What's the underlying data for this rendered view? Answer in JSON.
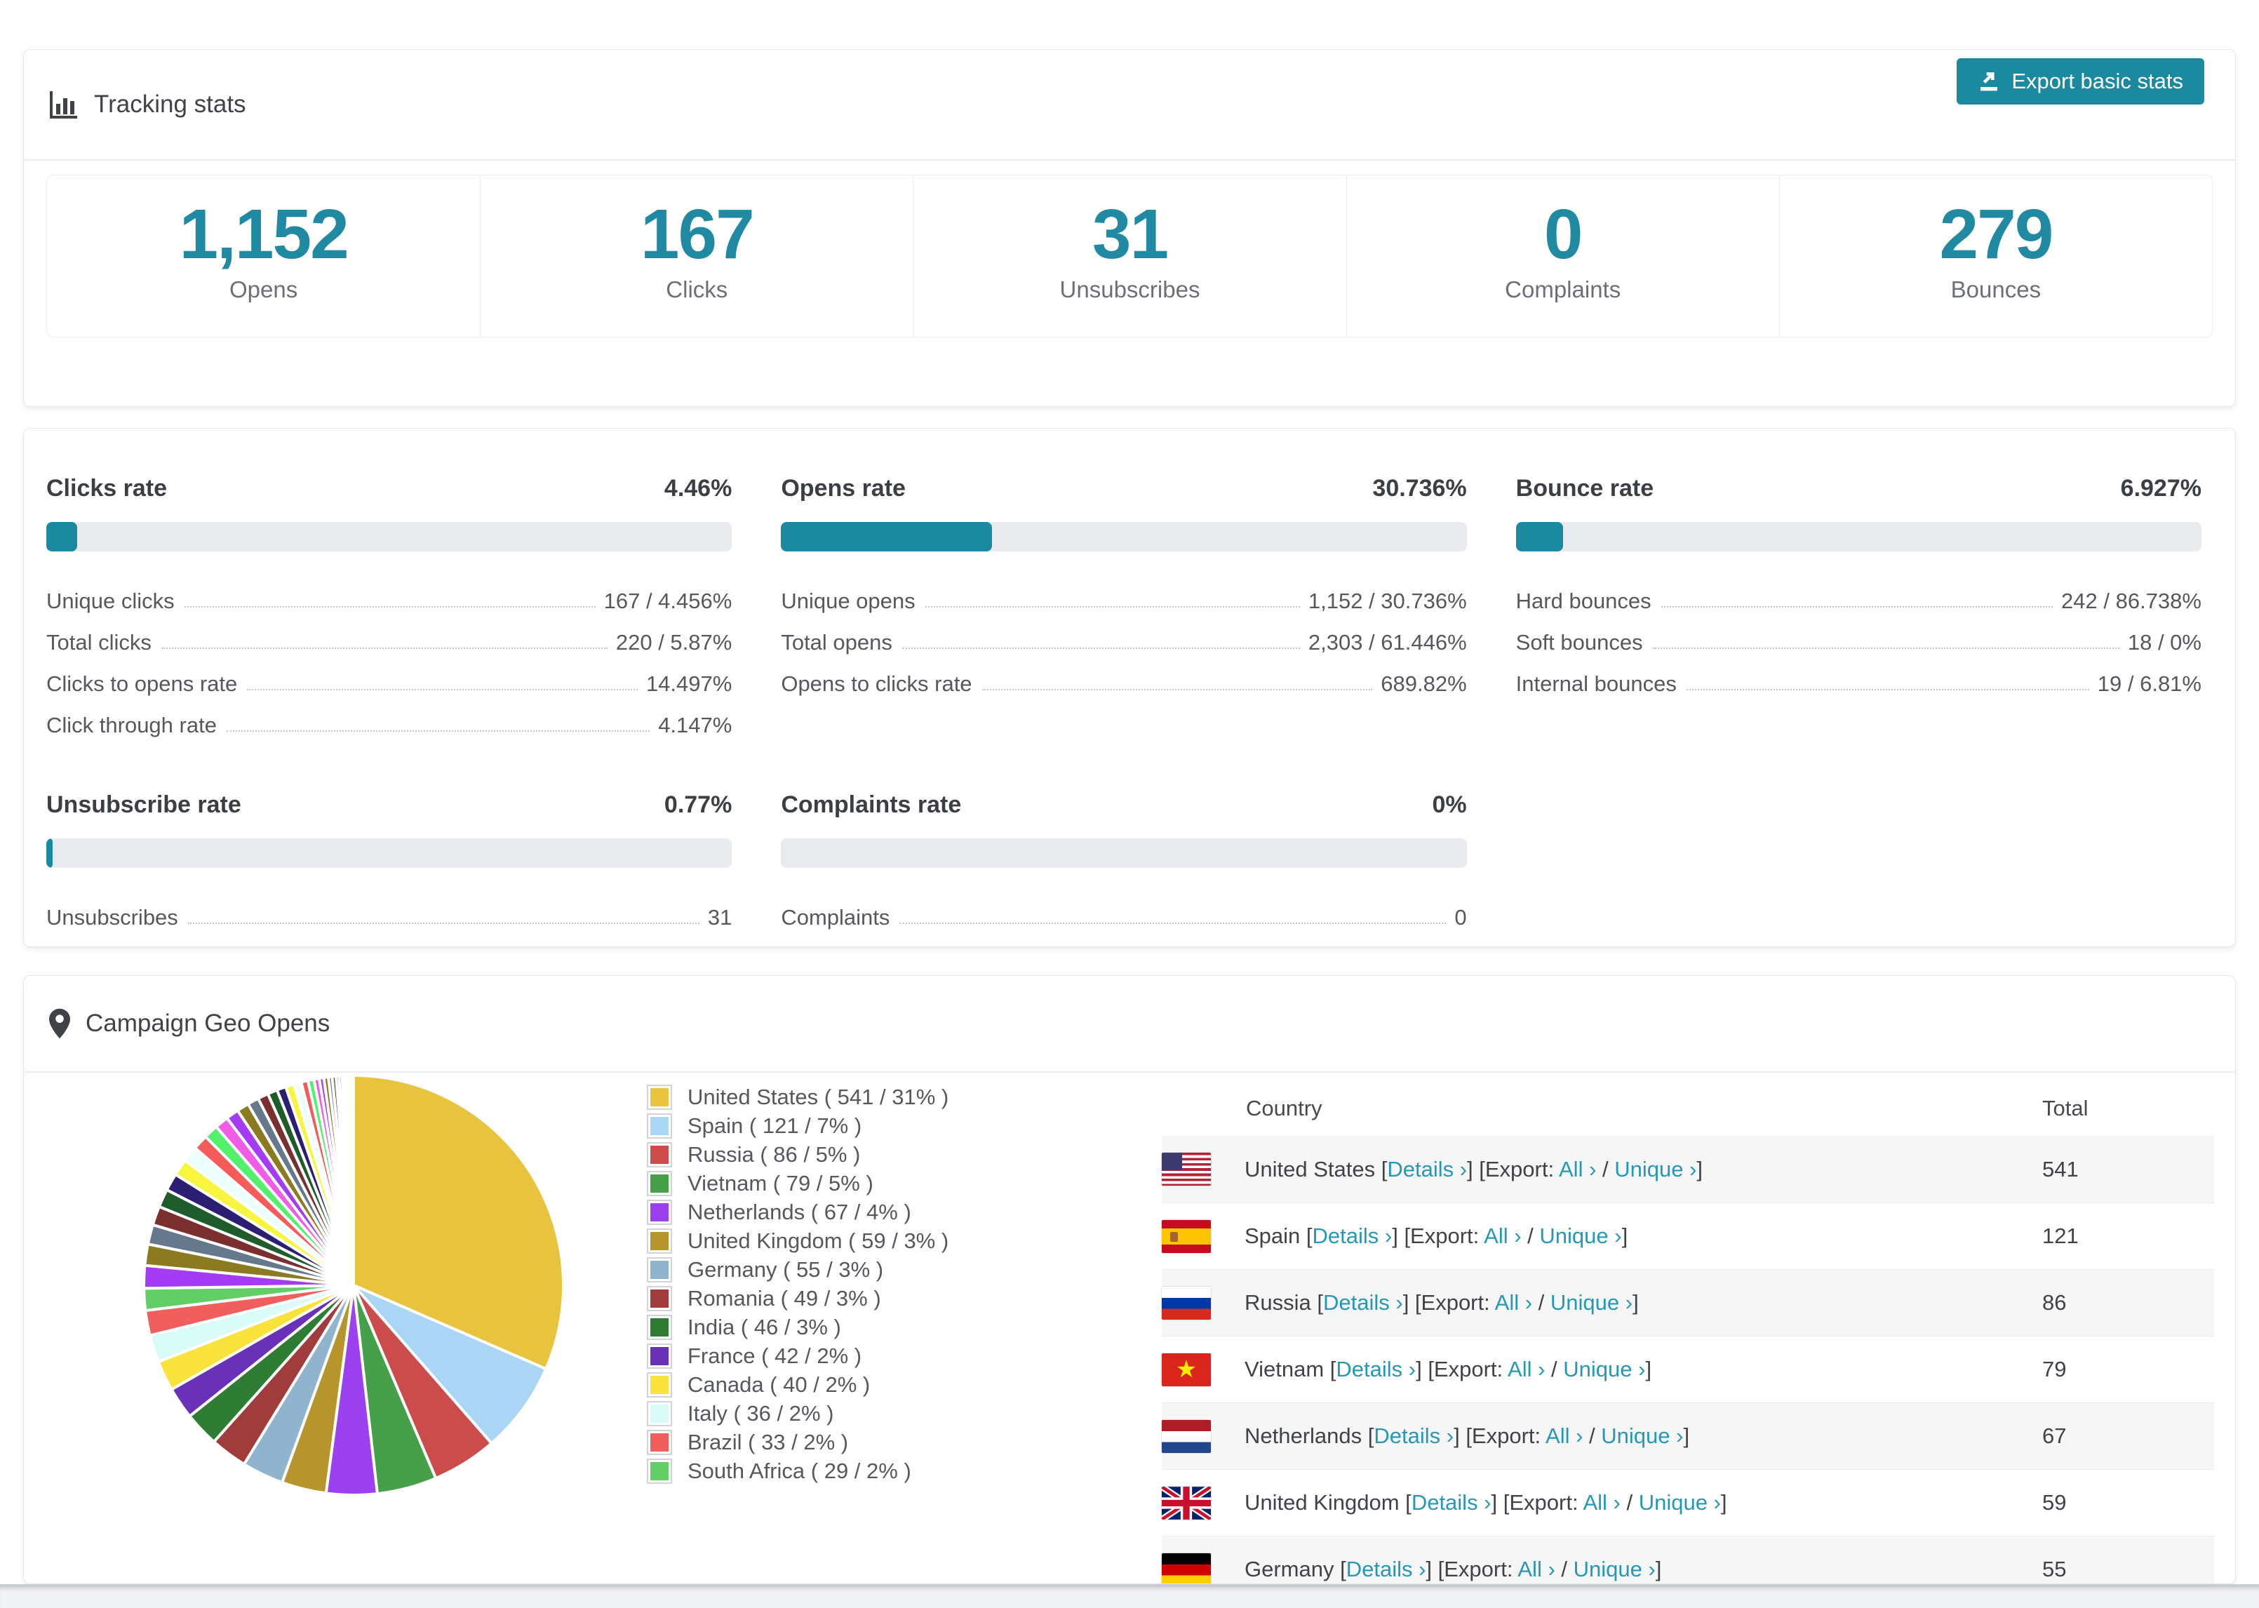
{
  "accent": "#1b89a0",
  "link_color": "#2598b7",
  "icons": {
    "header": "bar-chart-icon",
    "export": "export-icon",
    "geo": "map-pin-icon"
  },
  "tracking": {
    "title": "Tracking stats",
    "export_button": "Export basic stats",
    "cards": [
      {
        "value": "1,152",
        "label": "Opens"
      },
      {
        "value": "167",
        "label": "Clicks"
      },
      {
        "value": "31",
        "label": "Unsubscribes"
      },
      {
        "value": "0",
        "label": "Complaints"
      },
      {
        "value": "279",
        "label": "Bounces"
      }
    ]
  },
  "rates": [
    {
      "title": "Clicks rate",
      "value": "4.46%",
      "percent": 4.46,
      "rows": [
        [
          "Unique clicks",
          "167 / 4.456%"
        ],
        [
          "Total clicks",
          "220 / 5.87%"
        ],
        [
          "Clicks to opens rate",
          "14.497%"
        ],
        [
          "Click through rate",
          "4.147%"
        ]
      ]
    },
    {
      "title": "Opens rate",
      "value": "30.736%",
      "percent": 30.736,
      "rows": [
        [
          "Unique opens",
          "1,152 / 30.736%"
        ],
        [
          "Total opens",
          "2,303 / 61.446%"
        ],
        [
          "Opens to clicks rate",
          "689.82%"
        ]
      ]
    },
    {
      "title": "Bounce rate",
      "value": "6.927%",
      "percent": 6.927,
      "rows": [
        [
          "Hard bounces",
          "242 / 86.738%"
        ],
        [
          "Soft bounces",
          "18 / 0%"
        ],
        [
          "Internal bounces",
          "19 / 6.81%"
        ]
      ]
    },
    {
      "title": "Unsubscribe rate",
      "value": "0.77%",
      "percent": 0.77,
      "rows": [
        [
          "Unsubscribes",
          "31"
        ]
      ]
    },
    {
      "title": "Complaints rate",
      "value": "0%",
      "percent": 0,
      "rows": [
        [
          "Complaints",
          "0"
        ]
      ]
    }
  ],
  "geo": {
    "title": "Campaign Geo Opens",
    "table": {
      "columns": [
        "Country",
        "Total"
      ],
      "link_labels": {
        "details": "Details",
        "export_prefix": "Export:",
        "all": "All",
        "unique": "Unique",
        "arrow": "›"
      },
      "rows": [
        {
          "country": "United States",
          "flag": "us",
          "total": "541"
        },
        {
          "country": "Spain",
          "flag": "es",
          "total": "121"
        },
        {
          "country": "Russia",
          "flag": "ru",
          "total": "86"
        },
        {
          "country": "Vietnam",
          "flag": "vn",
          "total": "79"
        },
        {
          "country": "Netherlands",
          "flag": "nl",
          "total": "67"
        },
        {
          "country": "United Kingdom",
          "flag": "gb",
          "total": "59"
        },
        {
          "country": "Germany",
          "flag": "de",
          "total": "55"
        }
      ]
    }
  },
  "chart_data": {
    "type": "pie",
    "title": "Campaign Geo Opens",
    "legend_position": "right",
    "start_angle_deg": -90,
    "direction": "clockwise",
    "slices": [
      {
        "label": "United States",
        "value": 541,
        "pct": "31%",
        "color": "#e8c33d"
      },
      {
        "label": "Spain",
        "value": 121,
        "pct": "7%",
        "color": "#abd5f5"
      },
      {
        "label": "Russia",
        "value": 86,
        "pct": "5%",
        "color": "#cc4c4c"
      },
      {
        "label": "Vietnam",
        "value": 79,
        "pct": "5%",
        "color": "#46a04a"
      },
      {
        "label": "Netherlands",
        "value": 67,
        "pct": "4%",
        "color": "#9b41f0"
      },
      {
        "label": "United Kingdom",
        "value": 59,
        "pct": "3%",
        "color": "#b6952c"
      },
      {
        "label": "Germany",
        "value": 55,
        "pct": "3%",
        "color": "#90b4cd"
      },
      {
        "label": "Romania",
        "value": 49,
        "pct": "3%",
        "color": "#a03c3c"
      },
      {
        "label": "India",
        "value": 46,
        "pct": "3%",
        "color": "#2f7c35"
      },
      {
        "label": "France",
        "value": 42,
        "pct": "2%",
        "color": "#6930b8"
      },
      {
        "label": "Canada",
        "value": 40,
        "pct": "2%",
        "color": "#f8e23b"
      },
      {
        "label": "Italy",
        "value": 36,
        "pct": "2%",
        "color": "#d9fcf8"
      },
      {
        "label": "Brazil",
        "value": 33,
        "pct": "2%",
        "color": "#f15e5e"
      },
      {
        "label": "South Africa",
        "value": 29,
        "pct": "2%",
        "color": "#62cf66"
      }
    ],
    "others_values": [
      30,
      28,
      26,
      25,
      24,
      23,
      22,
      21,
      20,
      19,
      18,
      17,
      16,
      15,
      14,
      13,
      12,
      11,
      10,
      9,
      8,
      7,
      6,
      6,
      5,
      5,
      4,
      4,
      3,
      3,
      2,
      2,
      2,
      1,
      1,
      1
    ],
    "others_palette": [
      "#a43bf5",
      "#8b7a20",
      "#66798c",
      "#7b2f2f",
      "#1f5c2b",
      "#2c1e72",
      "#f8f53e",
      "#ebfffc",
      "#f55b5b",
      "#52f06b",
      "#f05ce6"
    ]
  }
}
